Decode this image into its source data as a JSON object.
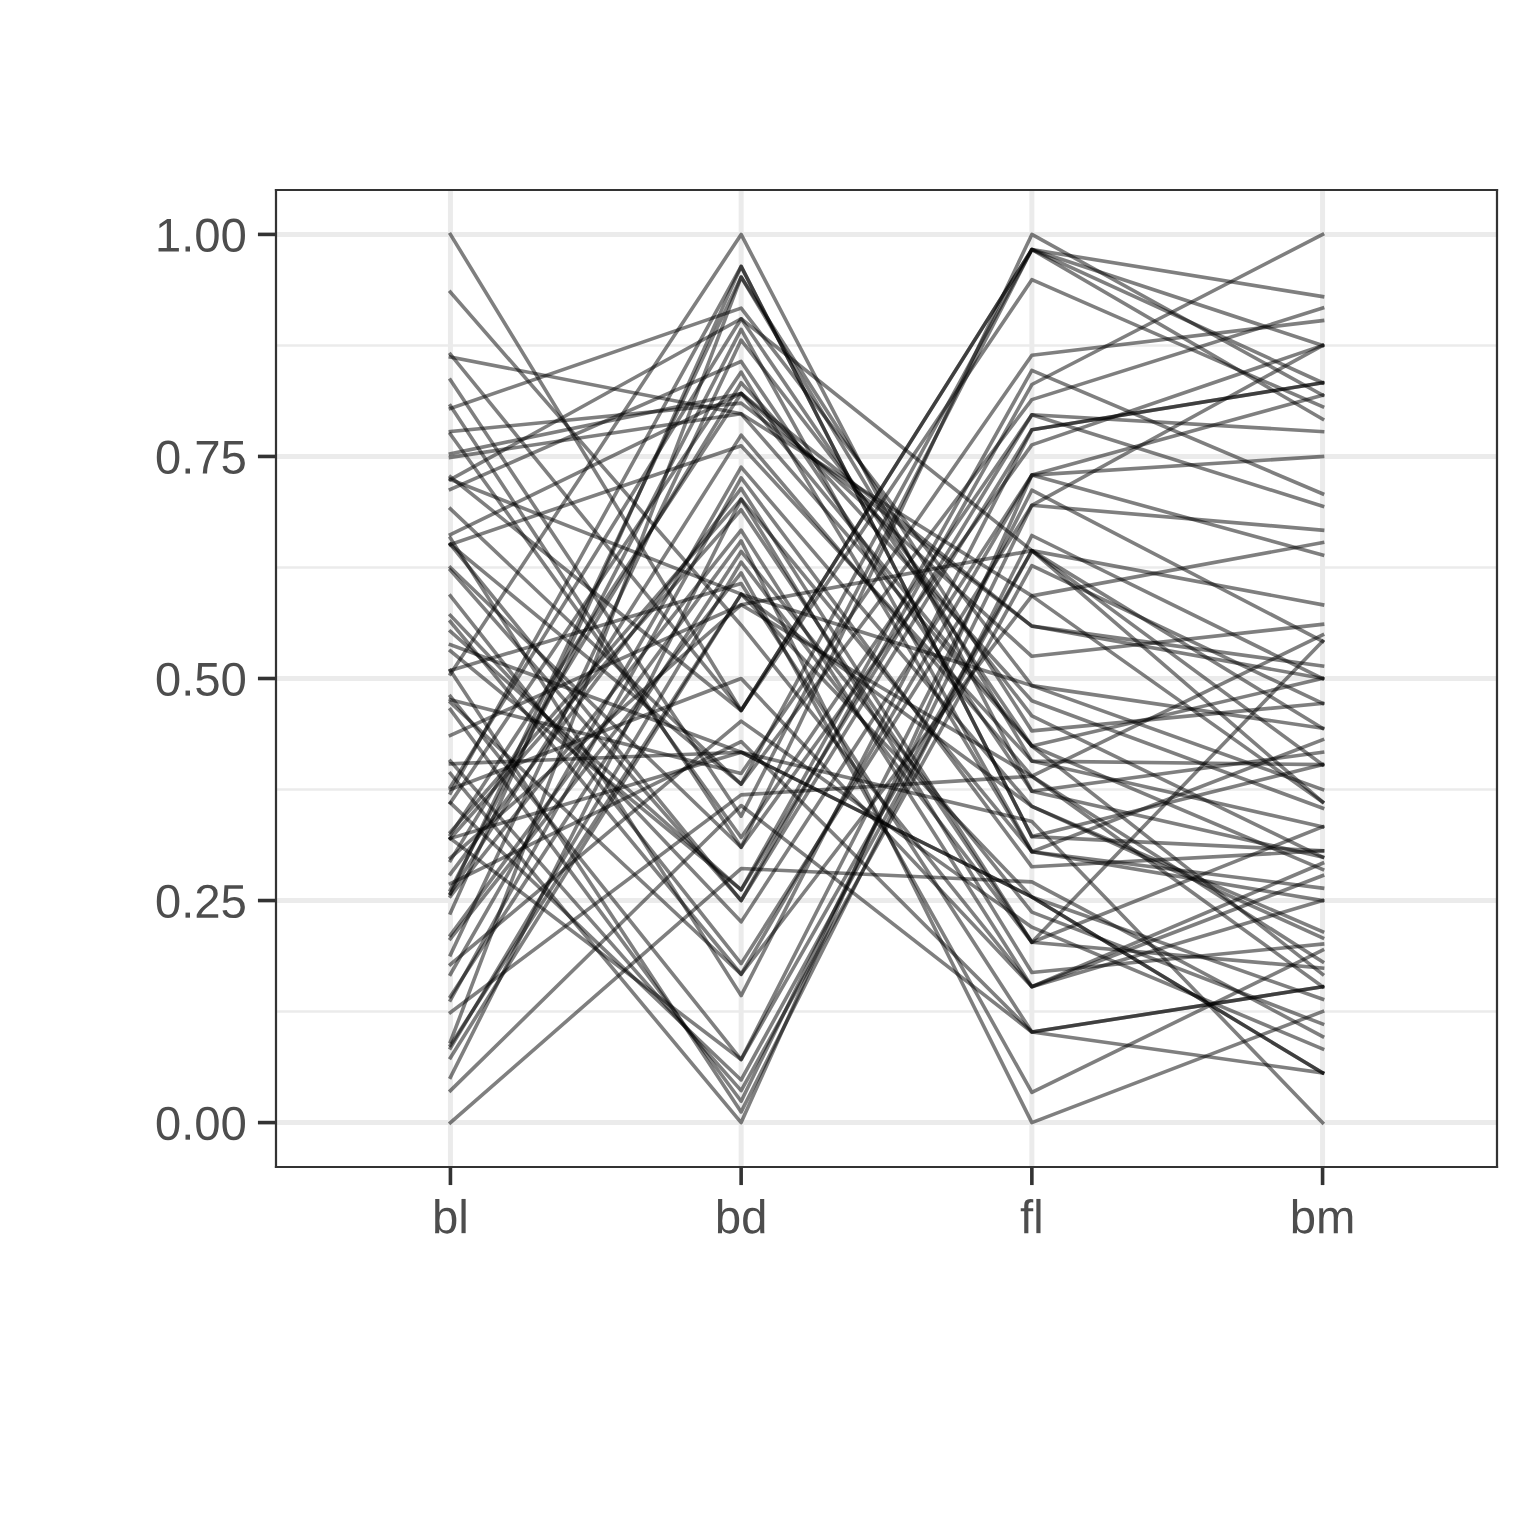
{
  "chart_data": {
    "type": "line",
    "categories": [
      "bl",
      "bd",
      "fl",
      "bm"
    ],
    "color": "#000000",
    "ylim": [
      -0.05,
      1.05
    ],
    "yticks": [
      {
        "value": 0,
        "label": "0.00"
      },
      {
        "value": 0.25,
        "label": "0.25"
      },
      {
        "value": 0.5,
        "label": "0.50"
      },
      {
        "value": 0.75,
        "label": "0.75"
      },
      {
        "value": 1,
        "label": "1.00"
      }
    ],
    "grid": true,
    "series": [
      {
        "values": [
          0.255,
          0.667,
          0.153,
          0.292
        ]
      },
      {
        "values": [
          0.298,
          0.583,
          0.39,
          0.153
        ]
      },
      {
        "values": [
          0.167,
          0.738,
          0.356,
          0.208
        ]
      },
      {
        "values": [
          0.262,
          0.893,
          0.305,
          0.264
        ]
      },
      {
        "values": [
          0.258,
          0.774,
          0.39,
          0.549
        ]
      },
      {
        "values": [
          0.073,
          0.595,
          0.356,
          0.215
        ]
      },
      {
        "values": [
          0.36,
          0.845,
          0.305,
          0.431
        ]
      },
      {
        "values": [
          0.236,
          0.964,
          0.322,
          0.306
        ]
      },
      {
        "values": [
          0.091,
          0.952,
          0.441,
          0.472
        ]
      },
      {
        "values": [
          0.378,
          0.905,
          0.424,
          0.5
        ]
      },
      {
        "values": [
          0.084,
          0.631,
          0.203,
          0.174
        ]
      },
      {
        "values": [
          0.505,
          1,
          0.373,
          0.417
        ]
      },
      {
        "values": [
          0.207,
          0.619,
          0.034,
          0.194
        ]
      },
      {
        "values": [
          0.138,
          0.726,
          0.288,
          0.306
        ]
      },
      {
        "values": [
          0.211,
          0.655,
          0,
          0.125
        ]
      },
      {
        "values": [
          0.269,
          0.429,
          0.102,
          0.153
        ]
      },
      {
        "values": [
          0.32,
          0.69,
          0.203,
          0.333
        ]
      },
      {
        "values": [
          0.258,
          0.952,
          0.407,
          0.403
        ]
      },
      {
        "values": [
          0.28,
          0.714,
          0.203,
          0.542
        ]
      },
      {
        "values": [
          0.142,
          0.643,
          0.237,
          0.111
        ]
      },
      {
        "values": [
          0.178,
          0.452,
          0.22,
          0.083
        ]
      },
      {
        "values": [
          0.327,
          0.702,
          0.169,
          0.201
        ]
      },
      {
        "values": [
          0.371,
          0.964,
          0.322,
          0.403
        ]
      },
      {
        "values": [
          0,
          0.286,
          0.271,
          0.097
        ]
      },
      {
        "values": [
          0.051,
          0.702,
          0.305,
          0.25
        ]
      },
      {
        "values": [
          0.087,
          0.595,
          0.254,
          0.056
        ]
      },
      {
        "values": [
          0.036,
          0.357,
          0.102,
          0.056
        ]
      },
      {
        "values": [
          0.436,
          0.583,
          0.644,
          0.361
        ]
      },
      {
        "values": [
          0.324,
          0.821,
          0.525,
          0.561
        ]
      },
      {
        "values": [
          0.295,
          0.833,
          0.475,
          0.354
        ]
      },
      {
        "values": [
          0.124,
          0.369,
          0.39,
          0.181
        ]
      },
      {
        "values": [
          0.189,
          0.881,
          0.458,
          0.299
        ]
      },
      {
        "values": [
          0.509,
          0.012,
          0.661,
          0.5
        ]
      },
      {
        "values": [
          0.651,
          0.381,
          0.983,
          0.833
        ]
      },
      {
        "values": [
          0.651,
          0.25,
          0.78,
          0.833
        ]
      },
      {
        "values": [
          0.564,
          0.167,
          0.729,
          0.75
        ]
      },
      {
        "values": [
          0.531,
          0.262,
          0.797,
          0.694
        ]
      },
      {
        "values": [
          0.407,
          0.036,
          0.627,
          0.472
        ]
      },
      {
        "values": [
          0.32,
          0.071,
          0.712,
          0.542
        ]
      },
      {
        "values": [
          0.593,
          0.179,
          0.695,
          0.875
        ]
      },
      {
        "values": [
          0.625,
          0.31,
          0.763,
          0.875
        ]
      },
      {
        "values": [
          0.36,
          0.048,
          0.644,
          0.403
        ]
      },
      {
        "values": [
          0.622,
          0.25,
          0.831,
          1
        ]
      },
      {
        "values": [
          0.658,
          0.143,
          0.78,
          0.833
        ]
      },
      {
        "values": [
          0.393,
          0,
          0.729,
          0.639
        ]
      },
      {
        "values": [
          0.571,
          0.226,
          0.729,
          0.819
        ]
      },
      {
        "values": [
          0.553,
          0.262,
          0.847,
          0.708
        ]
      },
      {
        "values": [
          0.473,
          0.167,
          0.593,
          0.653
        ]
      },
      {
        "values": [
          1,
          0.464,
          0.983,
          0.93
        ]
      },
      {
        "values": [
          0.865,
          0.464,
          0.949,
          0.806
        ]
      },
      {
        "values": [
          0.836,
          0.345,
          0.983,
          0.875
        ]
      },
      {
        "values": [
          0.807,
          0.31,
          1,
          0.819
        ]
      },
      {
        "values": [
          0.775,
          0.321,
          0.797,
          0.778
        ]
      },
      {
        "values": [
          0.727,
          0.464,
          0.983,
          0.792
        ]
      },
      {
        "values": [
          0.48,
          0.071,
          0.644,
          0.444
        ]
      },
      {
        "values": [
          0.465,
          0.024,
          0.695,
          0.667
        ]
      },
      {
        "values": [
          0.691,
          0.381,
          0.814,
          0.917
        ]
      },
      {
        "values": [
          0.476,
          0.393,
          0.864,
          0.903
        ]
      },
      {
        "values": [
          0.651,
          0.762,
          0.407,
          0.333
        ]
      },
      {
        "values": [
          0.749,
          0.798,
          0.424,
          0.285
        ]
      },
      {
        "values": [
          0.509,
          0.607,
          0.102,
          0.153
        ]
      },
      {
        "values": [
          0.713,
          0.857,
          0.373,
          0.299
        ]
      },
      {
        "values": [
          0.724,
          0.595,
          0.492,
          0.375
        ]
      },
      {
        "values": [
          0.662,
          0.821,
          0.424,
          0.167
        ]
      },
      {
        "values": [
          0.935,
          0.56,
          0.153,
          0.278
        ]
      },
      {
        "values": [
          0.375,
          0.5,
          0.153,
          0.25
        ]
      },
      {
        "values": [
          0.404,
          0.417,
          0.254,
          0.056
        ]
      },
      {
        "values": [
          0.753,
          0.821,
          0.559,
          0.514
        ]
      },
      {
        "values": [
          0.32,
          0.417,
          0.254,
          0.139
        ]
      },
      {
        "values": [
          0.804,
          0.917,
          0.492,
          0.444
        ]
      },
      {
        "values": [
          0.724,
          0.905,
          0.644,
          0.583
        ]
      },
      {
        "values": [
          0.538,
          0.417,
          0.339,
          0
        ]
      },
      {
        "values": [
          0.778,
          0.81,
          0.559,
          0.5
        ]
      },
      {
        "values": [
          0.862,
          0.798,
          0.593,
          0.361
        ]
      }
    ]
  }
}
